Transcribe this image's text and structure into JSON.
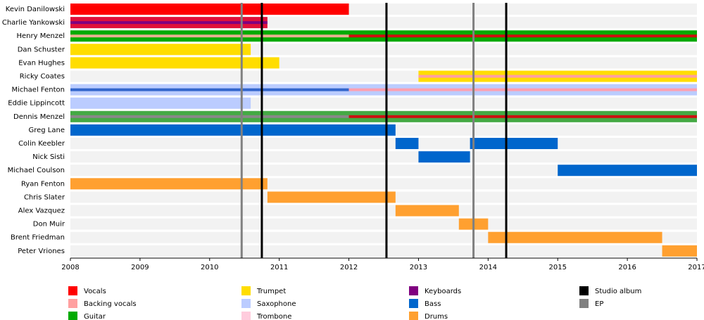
{
  "chart_data": {
    "type": "timeline",
    "xlim": [
      2008,
      2017
    ],
    "xticks": [
      2008,
      2009,
      2010,
      2011,
      2012,
      2013,
      2014,
      2015,
      2016,
      2017
    ],
    "members": [
      {
        "name": "Kevin Danilowski",
        "segments": [
          {
            "start": 2008,
            "end": 2012,
            "color": "#ff0000"
          }
        ],
        "stripes": []
      },
      {
        "name": "Charlie Yankowski",
        "segments": [
          {
            "start": 2008,
            "end": 2010.83,
            "color": "#e0103a"
          }
        ],
        "stripes": [
          {
            "start": 2008,
            "end": 2010.83,
            "color": "#800080"
          }
        ]
      },
      {
        "name": "Henry Menzel",
        "segments": [
          {
            "start": 2008,
            "end": 2017,
            "color": "#00aa00"
          }
        ],
        "stripes": [
          {
            "start": 2008,
            "end": 2012,
            "color": "#e8b090"
          },
          {
            "start": 2012,
            "end": 2017,
            "color": "#cc1010"
          }
        ]
      },
      {
        "name": "Dan Schuster",
        "segments": [
          {
            "start": 2008,
            "end": 2010.59,
            "color": "#ffdd00"
          }
        ],
        "stripes": []
      },
      {
        "name": "Evan Hughes",
        "segments": [
          {
            "start": 2008,
            "end": 2011,
            "color": "#ffdd00"
          }
        ],
        "stripes": []
      },
      {
        "name": "Ricky Coates",
        "segments": [
          {
            "start": 2013,
            "end": 2017,
            "color": "#ffdd00"
          }
        ],
        "stripes": [
          {
            "start": 2013,
            "end": 2017,
            "color": "#ffa0a0"
          }
        ]
      },
      {
        "name": "Michael Fenton",
        "segments": [
          {
            "start": 2008,
            "end": 2017,
            "color": "#bbccff"
          }
        ],
        "stripes": [
          {
            "start": 2008,
            "end": 2012,
            "color": "#3366cc"
          },
          {
            "start": 2012,
            "end": 2017,
            "color": "#ffa0b0"
          }
        ]
      },
      {
        "name": "Eddie Lippincott",
        "segments": [
          {
            "start": 2008,
            "end": 2010.59,
            "color": "#bbccff"
          }
        ],
        "stripes": []
      },
      {
        "name": "Dennis Menzel",
        "segments": [
          {
            "start": 2008,
            "end": 2017,
            "color": "#44aa44"
          }
        ],
        "stripes": [
          {
            "start": 2008,
            "end": 2012,
            "color": "#888888"
          },
          {
            "start": 2012,
            "end": 2017,
            "color": "#cc1010"
          }
        ]
      },
      {
        "name": "Greg Lane",
        "segments": [
          {
            "start": 2008,
            "end": 2012.67,
            "color": "#0066cc"
          }
        ],
        "stripes": []
      },
      {
        "name": "Colin Keebler",
        "segments": [
          {
            "start": 2012.67,
            "end": 2013,
            "color": "#0066cc"
          },
          {
            "start": 2013.74,
            "end": 2015,
            "color": "#0066cc"
          }
        ],
        "stripes": []
      },
      {
        "name": "Nick Sisti",
        "segments": [
          {
            "start": 2013,
            "end": 2013.74,
            "color": "#0066cc"
          }
        ],
        "stripes": []
      },
      {
        "name": "Michael Coulson",
        "segments": [
          {
            "start": 2015,
            "end": 2017,
            "color": "#0066cc"
          }
        ],
        "stripes": []
      },
      {
        "name": "Ryan Fenton",
        "segments": [
          {
            "start": 2008,
            "end": 2010.83,
            "color": "#ffa030"
          }
        ],
        "stripes": []
      },
      {
        "name": "Chris Slater",
        "segments": [
          {
            "start": 2010.83,
            "end": 2012.67,
            "color": "#ffa030"
          }
        ],
        "stripes": []
      },
      {
        "name": "Alex Vazquez",
        "segments": [
          {
            "start": 2012.67,
            "end": 2013.58,
            "color": "#ffa030"
          }
        ],
        "stripes": []
      },
      {
        "name": "Don Muir",
        "segments": [
          {
            "start": 2013.58,
            "end": 2014,
            "color": "#ffa030"
          }
        ],
        "stripes": []
      },
      {
        "name": "Brent Friedman",
        "segments": [
          {
            "start": 2014,
            "end": 2016.5,
            "color": "#ffa030"
          }
        ],
        "stripes": []
      },
      {
        "name": "Peter Vriones",
        "segments": [
          {
            "start": 2016.5,
            "end": 2017,
            "color": "#ffa030"
          }
        ],
        "stripes": []
      }
    ],
    "events": [
      {
        "name": "Studio album",
        "color": "#000000",
        "x": [
          2010.75,
          2012.54,
          2014.26
        ]
      },
      {
        "name": "EP",
        "color": "#808080",
        "x": [
          2010.46,
          2013.79
        ]
      }
    ],
    "legend": [
      {
        "name": "Vocals",
        "color": "#ff0000"
      },
      {
        "name": "Backing vocals",
        "color": "#ffa0a0"
      },
      {
        "name": "Guitar",
        "color": "#00aa00"
      },
      {
        "name": "Trumpet",
        "color": "#ffdd00"
      },
      {
        "name": "Saxophone",
        "color": "#bbccff"
      },
      {
        "name": "Trombone",
        "color": "#ffccdd"
      },
      {
        "name": "Keyboards",
        "color": "#800080"
      },
      {
        "name": "Bass",
        "color": "#0066cc"
      },
      {
        "name": "Drums",
        "color": "#ffa030"
      }
    ]
  }
}
